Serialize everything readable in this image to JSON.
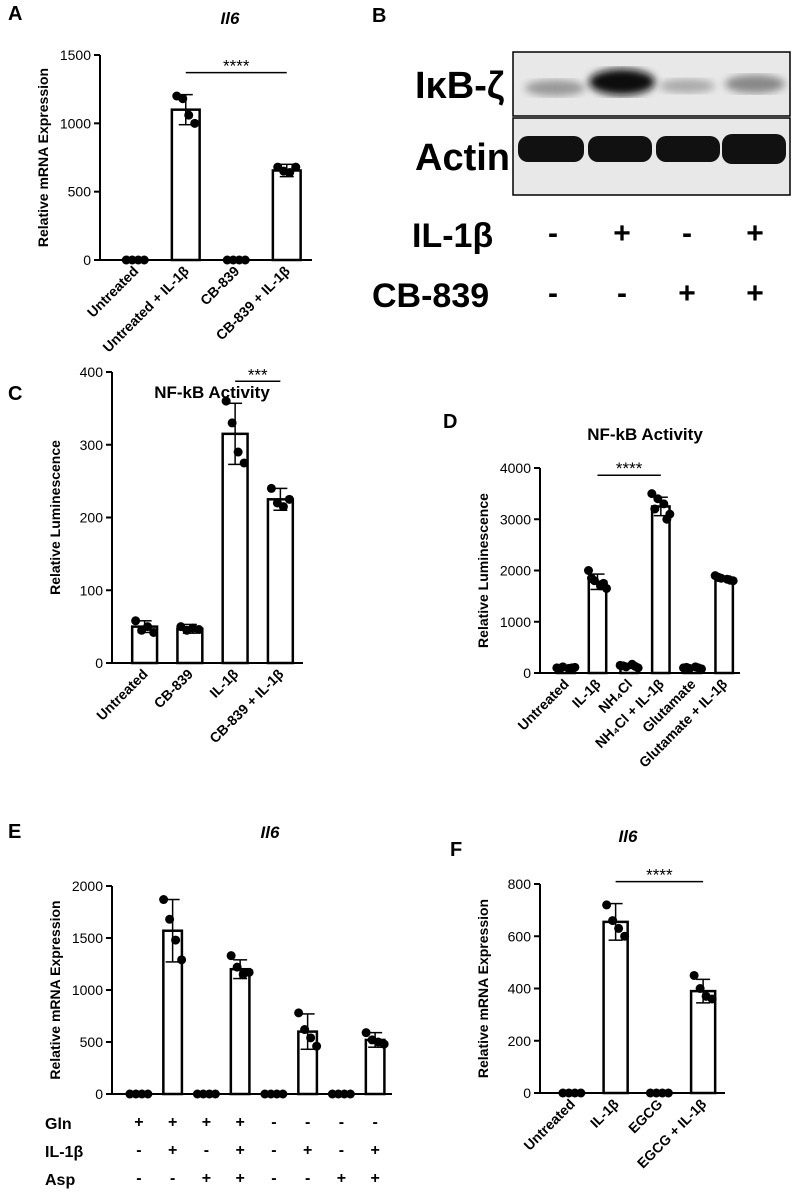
{
  "chart_data": [
    {
      "type": "bar",
      "panel": "A",
      "title": "Il6",
      "ylabel": "Relative mRNA Expression",
      "categories": [
        "Untreated",
        "Untreated + IL-1β",
        "CB-839",
        "CB-839 + IL-1β"
      ],
      "values": [
        0,
        1100,
        0,
        655
      ],
      "errors": [
        0,
        110,
        0,
        45
      ],
      "points": [
        [
          0,
          0,
          0,
          0
        ],
        [
          1200,
          1180,
          1060,
          1000
        ],
        [
          0,
          0,
          0,
          0
        ],
        [
          680,
          650,
          640,
          680
        ]
      ],
      "ylim": [
        0,
        1500
      ],
      "yticks": [
        0,
        500,
        1000,
        1500
      ],
      "color": "#ffffff",
      "annotation": {
        "text": "****",
        "between": [
          "Untreated + IL-1β",
          "CB-839 + IL-1β"
        ]
      }
    },
    {
      "type": "bar",
      "panel": "C",
      "title": "NF-kB Activity",
      "ylabel": "Relative Luminescence",
      "categories": [
        "Untreated",
        "CB-839",
        "IL-1β",
        "CB-839 + IL-1β"
      ],
      "values": [
        50,
        47,
        315,
        225
      ],
      "errors": [
        8,
        6,
        42,
        15
      ],
      "points": [
        [
          58,
          45,
          50,
          42
        ],
        [
          50,
          45,
          48,
          46
        ],
        [
          360,
          330,
          290,
          275
        ],
        [
          240,
          220,
          215,
          225
        ]
      ],
      "ylim": [
        0,
        400
      ],
      "yticks": [
        0,
        100,
        200,
        300,
        400
      ],
      "color": "#ffffff",
      "annotation": {
        "text": "***",
        "between": [
          "IL-1β",
          "CB-839 + IL-1β"
        ]
      }
    },
    {
      "type": "bar",
      "panel": "D",
      "title": "NF-kB Activity",
      "ylabel": "Relative Luminescence",
      "categories": [
        "Untreated",
        "IL-1β",
        "NH₄Cl",
        "NH₄Cl + IL-1β",
        "Glutamate",
        "Glutamate + IL-1β"
      ],
      "values": [
        100,
        1780,
        130,
        3250,
        100,
        1840
      ],
      "errors": [
        30,
        150,
        40,
        180,
        25,
        50
      ],
      "points": [
        [
          100,
          120,
          90,
          110,
          80,
          100
        ],
        [
          2000,
          1800,
          1700,
          1650,
          1850,
          1750
        ],
        [
          150,
          120,
          170,
          100,
          140,
          130
        ],
        [
          3500,
          3400,
          3300,
          3100,
          3200,
          3000
        ],
        [
          100,
          90,
          120,
          80,
          110,
          100
        ],
        [
          1900,
          1850,
          1830,
          1800,
          1870,
          1810
        ]
      ],
      "ylim": [
        0,
        4000
      ],
      "yticks": [
        0,
        1000,
        2000,
        3000,
        4000
      ],
      "color": "#ffffff",
      "annotation": {
        "text": "****",
        "between": [
          "IL-1β",
          "NH₄Cl + IL-1β"
        ]
      }
    },
    {
      "type": "bar",
      "panel": "E",
      "title": "Il6",
      "ylabel": "Relative mRNA Expression",
      "categories": [
        null,
        null,
        null,
        null,
        null,
        null,
        null,
        null
      ],
      "values": [
        0,
        1570,
        0,
        1200,
        0,
        600,
        0,
        520
      ],
      "errors": [
        0,
        300,
        0,
        90,
        0,
        170,
        0,
        70
      ],
      "points": [
        [
          0,
          0,
          0,
          0
        ],
        [
          1870,
          1680,
          1480,
          1290
        ],
        [
          0,
          0,
          0,
          0
        ],
        [
          1330,
          1220,
          1150,
          1170
        ],
        [
          0,
          0,
          0,
          0
        ],
        [
          780,
          620,
          540,
          460
        ],
        [
          0,
          0,
          0,
          0
        ],
        [
          590,
          520,
          500,
          480
        ]
      ],
      "ylim": [
        0,
        2000
      ],
      "yticks": [
        0,
        500,
        1000,
        1500,
        2000
      ],
      "color": "#ffffff",
      "conditions": [
        {
          "name": "Gln",
          "signs": [
            "+",
            "+",
            "+",
            "+",
            "-",
            "-",
            "-",
            "-"
          ]
        },
        {
          "name": "IL-1β",
          "signs": [
            "-",
            "+",
            "-",
            "+",
            "-",
            "+",
            "-",
            "+"
          ]
        },
        {
          "name": "Asp",
          "signs": [
            "-",
            "-",
            "+",
            "+",
            "-",
            "-",
            "+",
            "+"
          ]
        }
      ]
    },
    {
      "type": "bar",
      "panel": "F",
      "title": "Il6",
      "ylabel": "Relative mRNA Expression",
      "categories": [
        "Untreated",
        "IL-1β",
        "EGCG",
        "EGCG + IL-1β"
      ],
      "values": [
        0,
        655,
        0,
        390
      ],
      "errors": [
        0,
        70,
        0,
        45
      ],
      "points": [
        [
          0,
          0,
          0,
          0
        ],
        [
          720,
          660,
          630,
          600
        ],
        [
          0,
          0,
          0,
          0
        ],
        [
          450,
          400,
          370,
          360
        ]
      ],
      "ylim": [
        0,
        800
      ],
      "yticks": [
        0,
        200,
        400,
        600,
        800
      ],
      "color": "#ffffff",
      "annotation": {
        "text": "****",
        "between": [
          "IL-1β",
          "EGCG + IL-1β"
        ]
      }
    }
  ],
  "blot": {
    "panel": "B",
    "bands": [
      "IκB-ζ",
      "Actin"
    ],
    "rows": [
      {
        "name": "IL-1β",
        "signs": [
          "-",
          "+",
          "-",
          "+"
        ]
      },
      {
        "name": "CB-839",
        "signs": [
          "-",
          "-",
          "+",
          "+"
        ]
      }
    ]
  }
}
